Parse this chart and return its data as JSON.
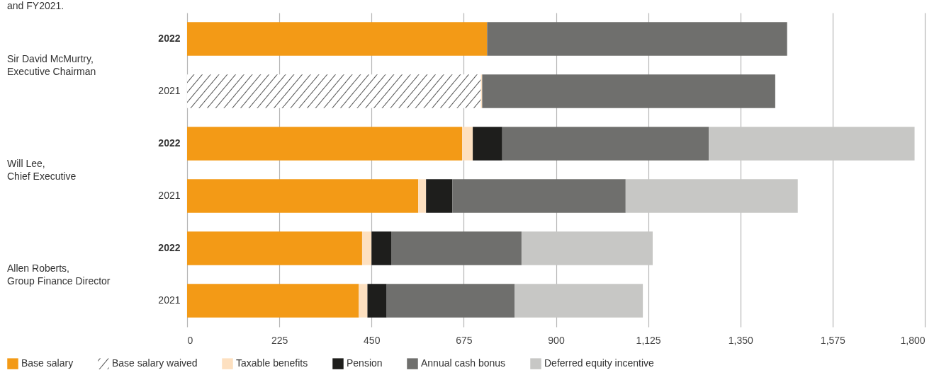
{
  "chart_data": {
    "type": "bar",
    "orientation": "horizontal",
    "stacked": true,
    "categories": [
      "2022",
      "2021",
      "2022",
      "2021",
      "2022",
      "2021"
    ],
    "series": [
      {
        "name": "Base salary",
        "color": "#f39a16",
        "values": [
          732,
          null,
          671,
          564,
          427,
          419
        ]
      },
      {
        "name": "Base salary waived",
        "color": "#1a1a1a",
        "line_style": "solid",
        "values": [
          null,
          717,
          null,
          null,
          null,
          null
        ]
      },
      {
        "name": "Taxable benefits",
        "color": "#fde0c0",
        "values": [
          null,
          3,
          26,
          19,
          23,
          21
        ]
      },
      {
        "name": "Pension",
        "color": "#1e1e1c",
        "values": [
          null,
          null,
          72,
          64,
          48,
          47
        ]
      },
      {
        "name": "Annual cash bonus",
        "color": "#6f6f6d",
        "values": [
          732,
          715,
          504,
          423,
          318,
          312
        ]
      },
      {
        "name": "Deferred equity incentive",
        "color": "#c7c7c5",
        "values": [
          null,
          null,
          502,
          420,
          320,
          313
        ]
      }
    ],
    "xlim": [
      0,
      1800
    ],
    "xticks": [
      0,
      225,
      450,
      675,
      900,
      {
        "value": 1125,
        "label": "1,125"
      },
      {
        "value": 1350,
        "label": "1,350"
      },
      {
        "value": 1575,
        "label": "1,575"
      },
      {
        "value": 1800,
        "label": "1,800"
      }
    ],
    "grid": "x",
    "legend": "bottom",
    "annotations": [
      "and FY2021.",
      "Sir David McMurtry,\nExecutive Chairman",
      "Will Lee,\nChief Executive",
      "Allen Roberts,\nGroup Finance Director"
    ]
  }
}
